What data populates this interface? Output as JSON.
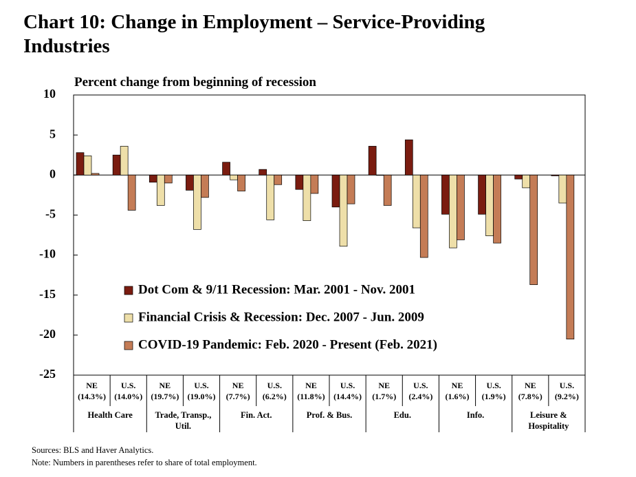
{
  "chart_data": {
    "type": "bar",
    "title": [
      "Chart 10: Change in Employment – Service-Providing",
      "Industries"
    ],
    "y_label": "Percent change from beginning of recession",
    "categories": [
      "NE",
      "U.S.",
      "NE",
      "U.S.",
      "NE",
      "U.S.",
      "NE",
      "U.S.",
      "NE",
      "U.S.",
      "NE",
      "U.S.",
      "NE",
      "U.S."
    ],
    "category_shares": [
      "(14.3%)",
      "(14.0%)",
      "(19.7%)",
      "(19.0%)",
      "(7.7%)",
      "(6.2%)",
      "(11.8%)",
      "(14.4%)",
      "(1.7%)",
      "(2.4%)",
      "(1.6%)",
      "(1.9%)",
      "(7.8%)",
      "(9.2%)"
    ],
    "groups": [
      [
        "Health Care"
      ],
      [
        "Trade, Transp.,",
        "Util."
      ],
      [
        "Fin. Act."
      ],
      [
        "Prof. & Bus."
      ],
      [
        "Edu."
      ],
      [
        "Info."
      ],
      [
        "Leisure &",
        "Hospitality"
      ]
    ],
    "series": [
      {
        "name": "Dot Com & 9/11 Recession: Mar. 2001 - Nov. 2001",
        "color": "#7a1c10",
        "values": [
          2.8,
          2.5,
          -0.9,
          -1.9,
          1.6,
          0.7,
          -1.8,
          -4.0,
          3.6,
          4.4,
          -4.9,
          -4.9,
          -0.5,
          -0.1
        ]
      },
      {
        "name": "Financial Crisis & Recession: Dec. 2007 - Jun. 2009",
        "color": "#eedfa9",
        "values": [
          2.4,
          3.6,
          -3.8,
          -6.8,
          -0.6,
          -5.6,
          -5.7,
          -8.9,
          0,
          -6.6,
          -9.1,
          -7.6,
          -1.6,
          -3.5
        ]
      },
      {
        "name": "COVID-19 Pandemic: Feb. 2020 - Present (Feb. 2021)",
        "color": "#c47c56",
        "values": [
          0.2,
          -4.4,
          -1.0,
          -2.8,
          -2.0,
          -1.2,
          -2.3,
          -3.6,
          -3.8,
          -10.3,
          -8.1,
          -8.5,
          -13.7,
          -20.5
        ]
      }
    ],
    "ylim": [
      -25,
      10
    ],
    "yticks": [
      -25,
      -20,
      -15,
      -10,
      -5,
      0,
      5,
      10
    ],
    "legend": "lower-left",
    "notes": [
      "Sources: BLS and Haver Analytics.",
      "Note: Numbers in parentheses refer to share of total employment."
    ]
  }
}
